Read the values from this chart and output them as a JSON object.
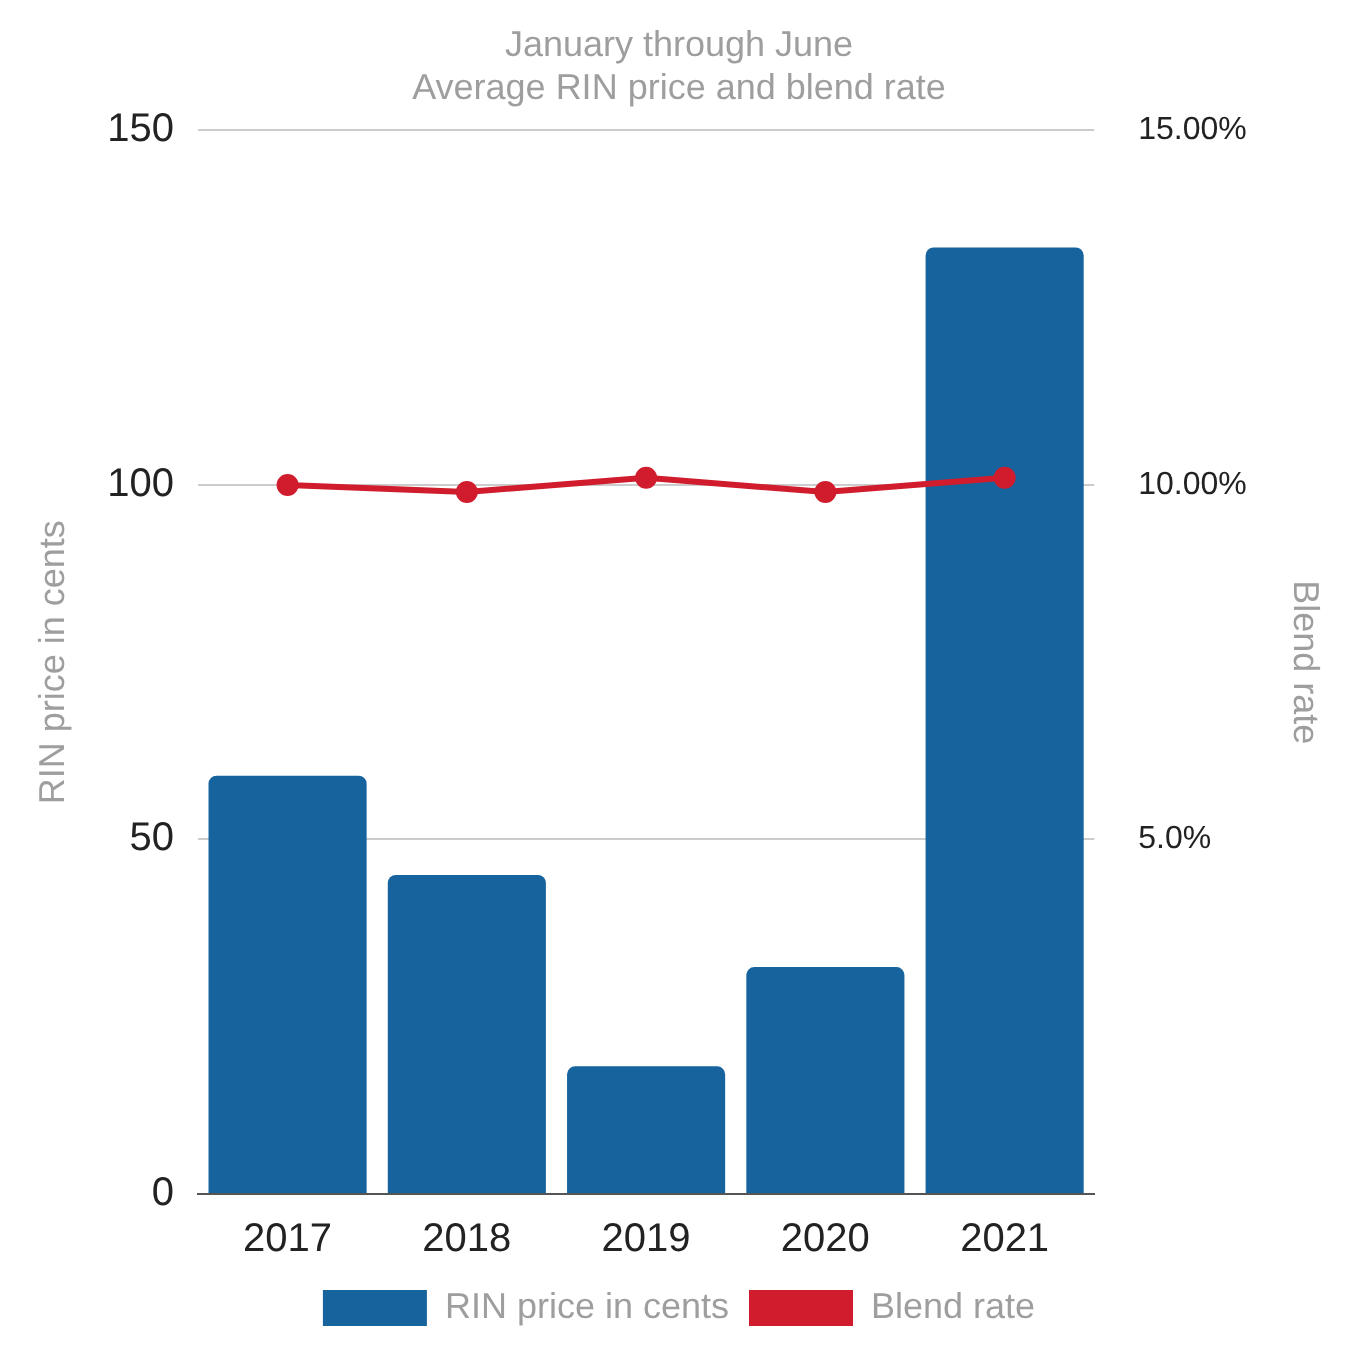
{
  "chart_data": {
    "type": "bar",
    "title": "January through June",
    "subtitle": "Average RIN price and blend rate",
    "ylabel": "RIN price in cents",
    "y2label": "Blend rate",
    "categories": [
      "2017",
      "2018",
      "2019",
      "2020",
      "2021"
    ],
    "series": [
      {
        "name": "RIN price in cents",
        "color": "#16639e",
        "values": [
          59,
          45,
          18,
          32,
          133.5
        ]
      },
      {
        "name": "Blend rate",
        "type": "line",
        "axis": "y2",
        "color": "#d01c2c",
        "marker": "circle",
        "values": [
          10.0,
          9.9,
          10.1,
          9.9,
          10.1
        ]
      }
    ],
    "ylim": [
      0,
      150
    ],
    "yticks": [
      0,
      50,
      100,
      150
    ],
    "y2lim": [
      0,
      15
    ],
    "y2ticks": [
      {
        "value": 5,
        "label": "5.0%"
      },
      {
        "value": 10,
        "label": "10.00%"
      },
      {
        "value": 15,
        "label": "15.00%"
      }
    ],
    "grid": "y",
    "legend": "bottom"
  }
}
